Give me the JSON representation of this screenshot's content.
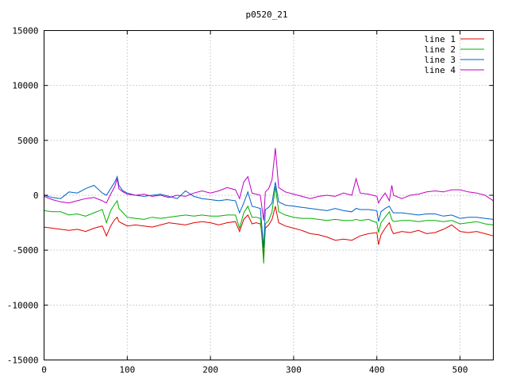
{
  "chart_data": {
    "type": "line",
    "title": "p0520_21",
    "xlabel": "",
    "ylabel": "",
    "xlim": [
      0,
      540
    ],
    "ylim": [
      -15000,
      15000
    ],
    "x_ticks": [
      0,
      100,
      200,
      300,
      400,
      500
    ],
    "y_ticks": [
      -15000,
      -10000,
      -5000,
      0,
      5000,
      10000,
      15000
    ],
    "grid": true,
    "legend_position": "top-right",
    "x": [
      0,
      10,
      20,
      30,
      40,
      50,
      60,
      70,
      75,
      80,
      85,
      88,
      90,
      95,
      100,
      110,
      120,
      130,
      140,
      150,
      160,
      170,
      180,
      190,
      200,
      210,
      220,
      230,
      235,
      240,
      245,
      250,
      255,
      260,
      262,
      264,
      266,
      270,
      274,
      278,
      282,
      290,
      300,
      310,
      320,
      330,
      340,
      350,
      360,
      370,
      375,
      380,
      390,
      400,
      402,
      405,
      410,
      415,
      418,
      420,
      430,
      440,
      450,
      460,
      470,
      480,
      490,
      500,
      510,
      520,
      530,
      540
    ],
    "series": [
      {
        "name": "line 1",
        "color": "#e00000",
        "values": [
          -2900,
          -3000,
          -3100,
          -3200,
          -3100,
          -3300,
          -3000,
          -2800,
          -3700,
          -2800,
          -2200,
          -2000,
          -2400,
          -2600,
          -2800,
          -2700,
          -2800,
          -2900,
          -2700,
          -2500,
          -2600,
          -2700,
          -2500,
          -2400,
          -2500,
          -2700,
          -2500,
          -2400,
          -3300,
          -2200,
          -1800,
          -2600,
          -2500,
          -2600,
          -3500,
          -5600,
          -3000,
          -2700,
          -2200,
          -1000,
          -2500,
          -2800,
          -3000,
          -3200,
          -3500,
          -3600,
          -3800,
          -4100,
          -4000,
          -4100,
          -3900,
          -3700,
          -3500,
          -3400,
          -4500,
          -3600,
          -3000,
          -2500,
          -3200,
          -3500,
          -3300,
          -3400,
          -3200,
          -3500,
          -3400,
          -3100,
          -2700,
          -3300,
          -3400,
          -3300,
          -3500,
          -3700
        ]
      },
      {
        "name": "line 2",
        "color": "#00b000",
        "values": [
          -1400,
          -1500,
          -1500,
          -1800,
          -1700,
          -1900,
          -1600,
          -1300,
          -2500,
          -1400,
          -800,
          -500,
          -1200,
          -1600,
          -2000,
          -2100,
          -2200,
          -2000,
          -2100,
          -2000,
          -1900,
          -1800,
          -1900,
          -1800,
          -1900,
          -1900,
          -1800,
          -1800,
          -3000,
          -1600,
          -1000,
          -2000,
          -2000,
          -2100,
          -4000,
          -6200,
          -2600,
          -2300,
          -1500,
          800,
          -1500,
          -1800,
          -2000,
          -2100,
          -2100,
          -2200,
          -2300,
          -2200,
          -2300,
          -2300,
          -2200,
          -2300,
          -2200,
          -2500,
          -3400,
          -2500,
          -2000,
          -1500,
          -2200,
          -2400,
          -2300,
          -2300,
          -2400,
          -2300,
          -2300,
          -2400,
          -2300,
          -2600,
          -2500,
          -2400,
          -2600,
          -2700
        ]
      },
      {
        "name": "line 3",
        "color": "#0060c8",
        "values": [
          0,
          -200,
          -300,
          300,
          200,
          600,
          900,
          200,
          0,
          600,
          1200,
          1700,
          900,
          400,
          200,
          0,
          -100,
          0,
          100,
          -100,
          -300,
          400,
          -100,
          -300,
          -400,
          -500,
          -400,
          -500,
          -1600,
          -700,
          300,
          -1000,
          -1100,
          -1200,
          -3000,
          -4800,
          -1300,
          -1100,
          -700,
          1200,
          -600,
          -900,
          -1000,
          -1100,
          -1200,
          -1300,
          -1400,
          -1200,
          -1400,
          -1500,
          -1200,
          -1300,
          -1300,
          -1400,
          -2400,
          -1500,
          -1200,
          -1000,
          -1400,
          -1600,
          -1600,
          -1700,
          -1800,
          -1700,
          -1700,
          -1900,
          -1800,
          -2100,
          -2000,
          -2000,
          -2100,
          -2200
        ]
      },
      {
        "name": "line 4",
        "color": "#c000c0",
        "values": [
          -100,
          -400,
          -600,
          -700,
          -500,
          -300,
          -200,
          -500,
          -700,
          100,
          800,
          1500,
          600,
          300,
          100,
          0,
          100,
          -100,
          0,
          -200,
          0,
          -100,
          200,
          400,
          200,
          400,
          700,
          500,
          -300,
          1200,
          1700,
          200,
          100,
          0,
          -1200,
          -2300,
          300,
          600,
          1400,
          4300,
          700,
          300,
          100,
          -100,
          -300,
          -100,
          0,
          -100,
          200,
          0,
          1500,
          200,
          100,
          -100,
          -700,
          -300,
          200,
          -500,
          900,
          0,
          -300,
          0,
          100,
          300,
          400,
          300,
          500,
          500,
          300,
          200,
          0,
          -500
        ]
      }
    ]
  }
}
